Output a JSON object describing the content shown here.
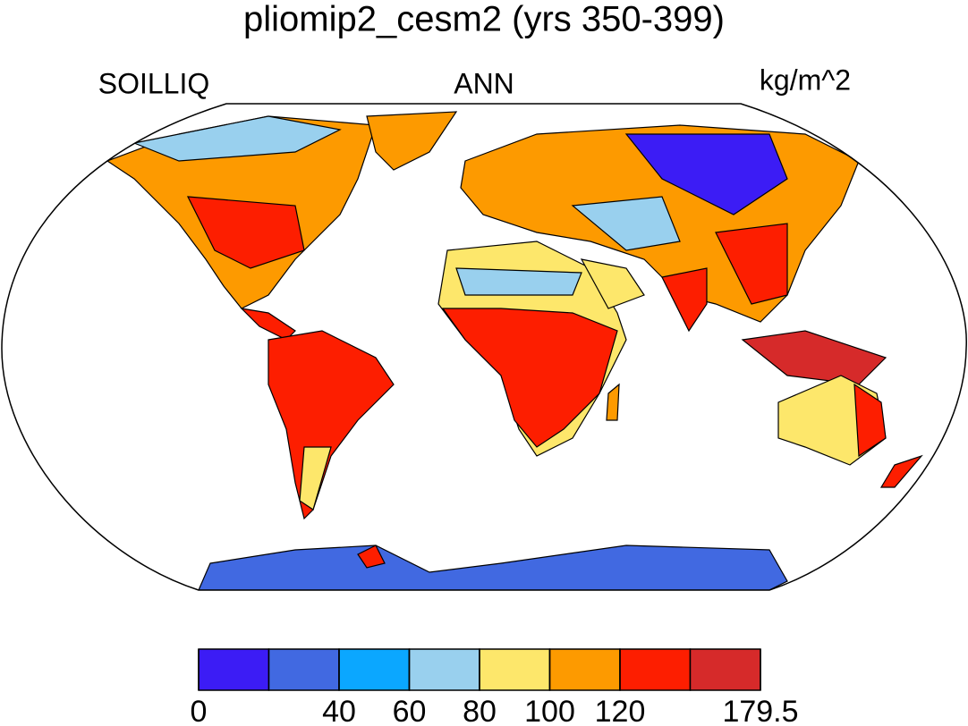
{
  "title": "pliomip2_cesm2 (yrs 350-399)",
  "left_label": "SOILLIQ",
  "center_label": "ANN",
  "right_label": "kg/m^2",
  "colorbar": {
    "colors": [
      "#3c1cf5",
      "#4169e1",
      "#0ba7ff",
      "#99d0ee",
      "#fde76b",
      "#fd9a00",
      "#fd1e00",
      "#d62a2a"
    ],
    "ticks": [
      0,
      null,
      40,
      60,
      80,
      100,
      120,
      null,
      179.5
    ]
  }
}
